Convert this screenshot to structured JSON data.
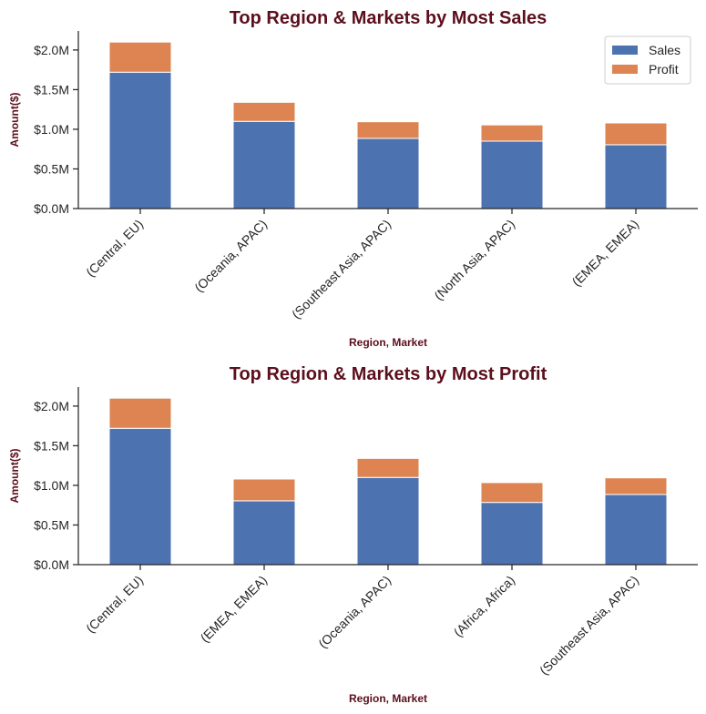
{
  "colors": {
    "sales": "#4c72b0",
    "profit": "#dd8452",
    "title": "#5c0f1c"
  },
  "chart_data": [
    {
      "type": "bar",
      "stacked": true,
      "title": "Top Region & Markets by Most Sales",
      "xlabel": "Region, Market",
      "ylabel": "Amount($)",
      "categories": [
        "(Central, EU)",
        "(Oceania, APAC)",
        "(Southeast Asia, APAC)",
        "(North Asia, APAC)",
        "(EMEA, EMEA)"
      ],
      "series": [
        {
          "name": "Sales",
          "values": [
            1720000,
            1100000,
            885000,
            850000,
            805000
          ]
        },
        {
          "name": "Profit",
          "values": [
            380000,
            240000,
            210000,
            205000,
            275000
          ]
        }
      ],
      "ylim": [
        0,
        2240000
      ],
      "yticks": [
        0,
        500000,
        1000000,
        1500000,
        2000000
      ],
      "ytick_labels": [
        "$0.0M",
        "$0.5M",
        "$1.0M",
        "$1.5M",
        "$2.0M"
      ],
      "legend": {
        "position": "top-right",
        "entries": [
          "Sales",
          "Profit"
        ]
      },
      "grid": false
    },
    {
      "type": "bar",
      "stacked": true,
      "title": "Top Region & Markets by Most Profit",
      "xlabel": "Region, Market",
      "ylabel": "Amount($)",
      "categories": [
        "(Central, EU)",
        "(EMEA, EMEA)",
        "(Oceania, APAC)",
        "(Africa, Africa)",
        "(Southeast Asia, APAC)"
      ],
      "series": [
        {
          "name": "Sales",
          "values": [
            1720000,
            805000,
            1100000,
            785000,
            885000
          ]
        },
        {
          "name": "Profit",
          "values": [
            380000,
            275000,
            240000,
            250000,
            210000
          ]
        }
      ],
      "ylim": [
        0,
        2240000
      ],
      "yticks": [
        0,
        500000,
        1000000,
        1500000,
        2000000
      ],
      "ytick_labels": [
        "$0.0M",
        "$0.5M",
        "$1.0M",
        "$1.5M",
        "$2.0M"
      ],
      "grid": false
    }
  ]
}
